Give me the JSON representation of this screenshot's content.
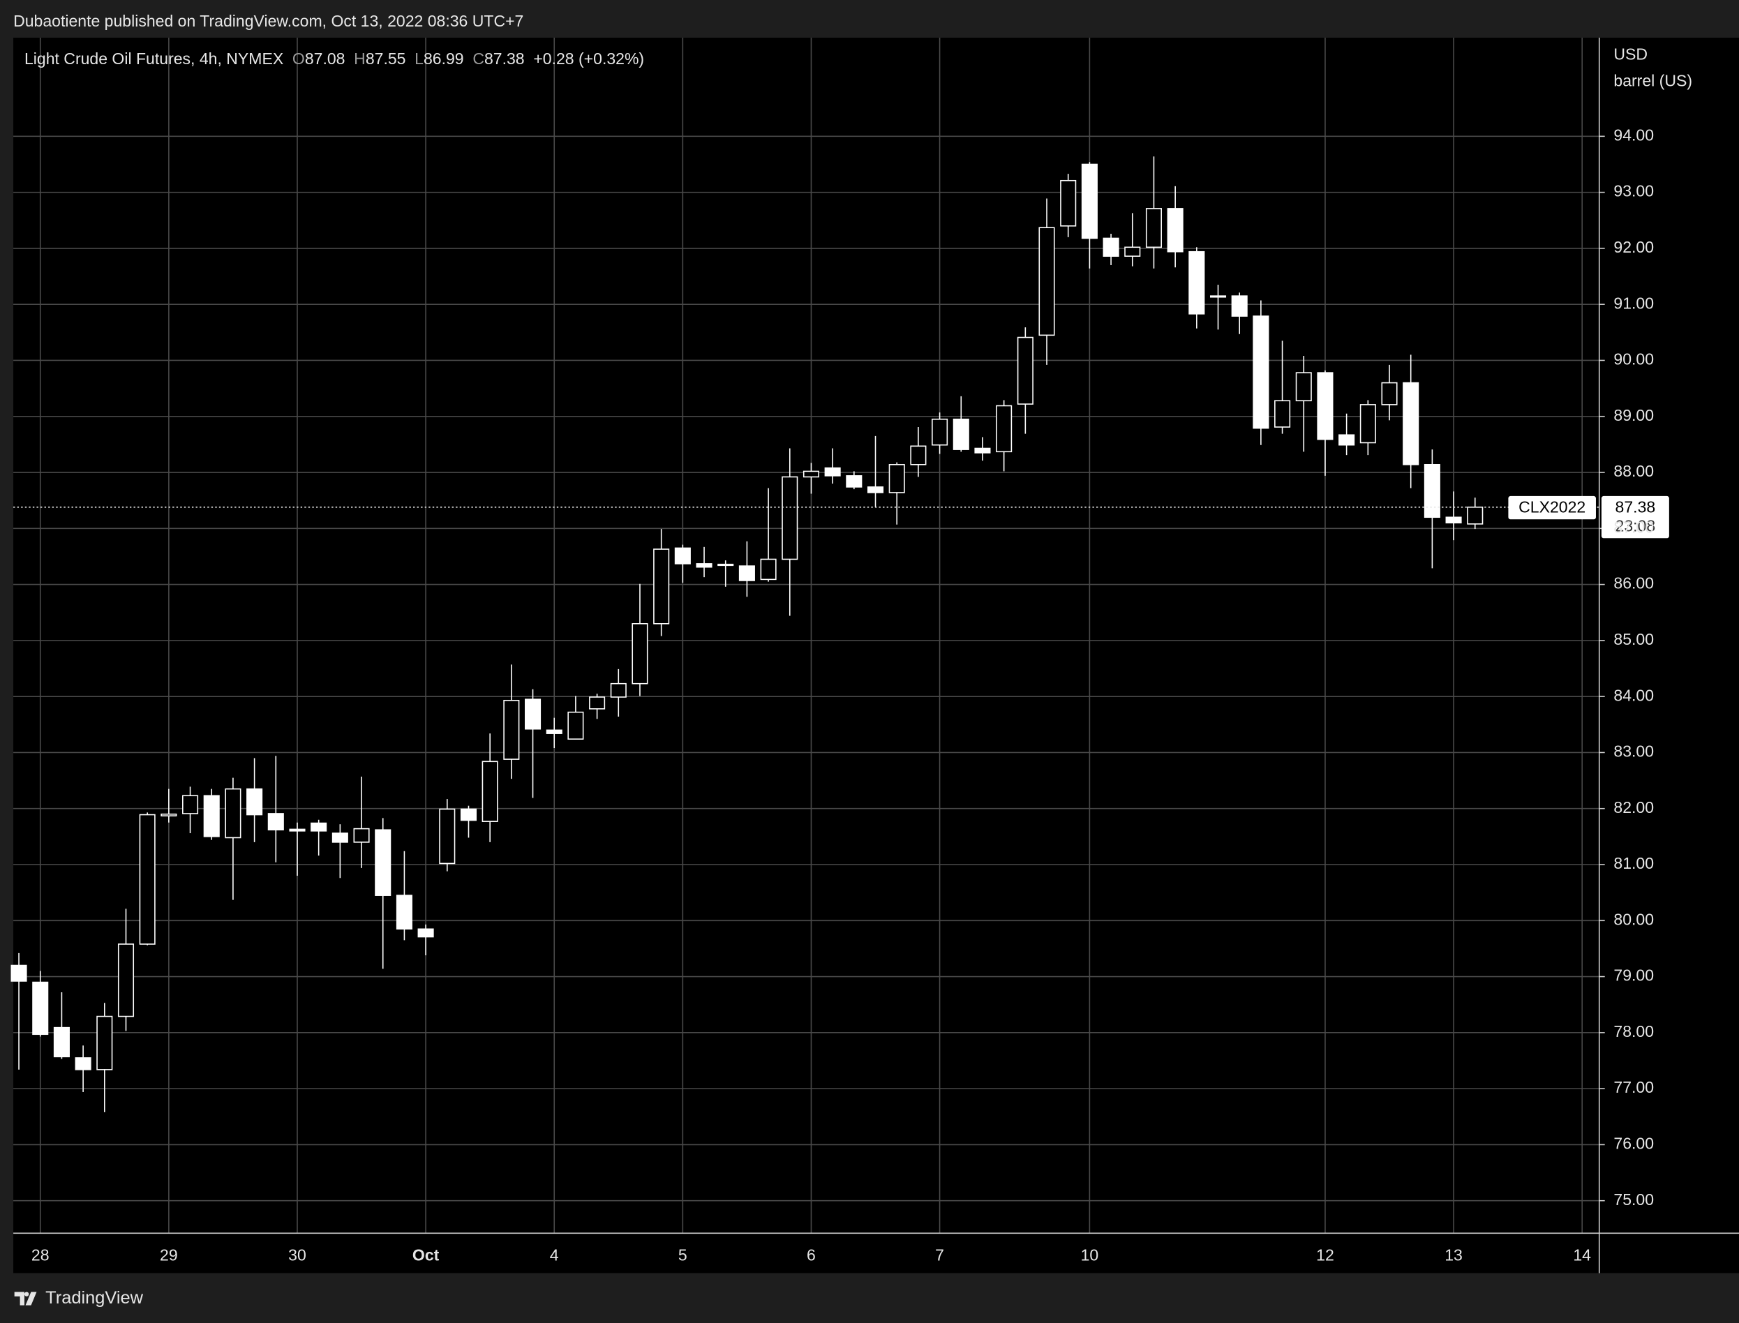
{
  "chart_data": {
    "type": "candlestick",
    "header": "Dubaotiente published on TradingView.com, Oct 13, 2022 08:36 UTC+7",
    "legend": {
      "symbol": "Light Crude Oil Futures, 4h, NYMEX",
      "fields": [
        {
          "label": "O",
          "value": 87.08
        },
        {
          "label": "H",
          "value": 87.55
        },
        {
          "label": "L",
          "value": 86.99
        },
        {
          "label": "C",
          "value": 87.38
        }
      ],
      "change": "+0.28 (+0.32%)"
    },
    "y_unit": [
      "USD",
      "barrel (US)"
    ],
    "footer": "TradingView",
    "ohlc": {
      "open": [
        79.2,
        78.9,
        78.09,
        77.55,
        77.34,
        78.29,
        79.58,
        81.87,
        81.91,
        82.23,
        81.48,
        82.35,
        81.91,
        81.63,
        81.74,
        81.56,
        81.4,
        81.62,
        80.45,
        79.85,
        81.02,
        81.99,
        81.77,
        82.88,
        83.95,
        83.4,
        83.24,
        83.78,
        83.99,
        84.23,
        85.3,
        86.65,
        86.37,
        86.34,
        86.33,
        86.09,
        86.45,
        87.92,
        88.08,
        87.94,
        87.74,
        87.64,
        88.14,
        88.49,
        88.95,
        88.43,
        88.37,
        89.22,
        90.45,
        92.4,
        93.5,
        92.18,
        91.86,
        92.02,
        92.71,
        91.94,
        91.15,
        91.15,
        90.79,
        88.81,
        89.28,
        89.78,
        88.67,
        88.53,
        89.21,
        89.6,
        88.14,
        87.2,
        87.08
      ],
      "high": [
        79.42,
        79.1,
        78.72,
        77.77,
        78.53,
        80.21,
        81.93,
        82.35,
        82.39,
        82.35,
        82.55,
        82.9,
        82.94,
        81.75,
        81.8,
        81.72,
        82.57,
        81.83,
        81.24,
        79.93,
        82.17,
        82.05,
        83.34,
        84.57,
        84.13,
        83.62,
        84.01,
        84.05,
        84.49,
        86.01,
        86.99,
        86.71,
        86.67,
        86.43,
        86.77,
        87.72,
        88.43,
        88.17,
        88.43,
        88.02,
        88.65,
        88.18,
        88.81,
        89.07,
        89.36,
        88.63,
        89.29,
        90.59,
        92.89,
        93.33,
        93.54,
        92.26,
        92.63,
        93.64,
        93.11,
        92.02,
        91.35,
        91.21,
        91.07,
        90.35,
        90.08,
        89.82,
        89.05,
        89.29,
        89.92,
        90.1,
        88.41,
        87.66,
        87.55
      ],
      "low": [
        77.34,
        77.93,
        77.53,
        76.94,
        76.58,
        78.03,
        79.56,
        81.75,
        81.56,
        81.44,
        80.37,
        81.4,
        81.04,
        80.8,
        81.16,
        80.76,
        80.94,
        79.14,
        79.65,
        79.38,
        80.88,
        81.48,
        81.4,
        82.53,
        82.19,
        83.08,
        83.24,
        83.6,
        83.64,
        84.01,
        85.08,
        86.03,
        86.13,
        85.96,
        85.78,
        86.05,
        85.44,
        87.62,
        87.8,
        87.7,
        87.38,
        87.07,
        87.92,
        88.33,
        88.37,
        88.21,
        88.02,
        88.69,
        89.92,
        92.2,
        91.64,
        91.7,
        91.68,
        91.64,
        91.66,
        90.57,
        90.55,
        90.47,
        88.49,
        88.69,
        88.37,
        87.94,
        88.31,
        88.31,
        88.93,
        87.72,
        86.29,
        86.79,
        86.99
      ],
      "close": [
        78.92,
        77.97,
        77.57,
        77.34,
        78.29,
        79.58,
        81.89,
        81.9,
        82.23,
        81.5,
        82.35,
        81.89,
        81.62,
        81.6,
        81.6,
        81.4,
        81.64,
        80.45,
        79.85,
        79.71,
        81.99,
        81.79,
        82.84,
        83.93,
        83.42,
        83.34,
        83.72,
        83.99,
        84.23,
        85.3,
        86.63,
        86.37,
        86.31,
        86.36,
        86.07,
        86.45,
        87.92,
        88.02,
        87.94,
        87.74,
        87.64,
        88.14,
        88.47,
        88.95,
        88.41,
        88.35,
        89.19,
        90.41,
        92.37,
        93.21,
        92.18,
        91.86,
        92.02,
        92.71,
        91.94,
        90.83,
        91.13,
        90.79,
        88.79,
        89.28,
        89.78,
        88.59,
        88.49,
        89.21,
        89.6,
        88.14,
        87.2,
        87.1,
        87.38
      ]
    },
    "xlim": [
      -0.26,
      73.8
    ],
    "xticks": [
      {
        "value": 1,
        "label": "28"
      },
      {
        "value": 7,
        "label": "29"
      },
      {
        "value": 13,
        "label": "30"
      },
      {
        "value": 19,
        "label": "Oct"
      },
      {
        "value": 25,
        "label": "4"
      },
      {
        "value": 31,
        "label": "5"
      },
      {
        "value": 37,
        "label": "6"
      },
      {
        "value": 43,
        "label": "7"
      },
      {
        "value": 50,
        "label": "10"
      },
      {
        "value": 61,
        "label": "12"
      },
      {
        "value": 67,
        "label": "13"
      },
      {
        "value": 73,
        "label": "14"
      }
    ],
    "ylim": [
      74.42,
      95.76
    ],
    "yticks": [
      {
        "value": 75,
        "label": "75.00"
      },
      {
        "value": 76,
        "label": "76.00"
      },
      {
        "value": 77,
        "label": "77.00"
      },
      {
        "value": 78,
        "label": "78.00"
      },
      {
        "value": 79,
        "label": "79.00"
      },
      {
        "value": 80,
        "label": "80.00"
      },
      {
        "value": 81,
        "label": "81.00"
      },
      {
        "value": 82,
        "label": "82.00"
      },
      {
        "value": 83,
        "label": "83.00"
      },
      {
        "value": 84,
        "label": "84.00"
      },
      {
        "value": 85,
        "label": "85.00"
      },
      {
        "value": 86,
        "label": "86.00"
      },
      {
        "value": 87,
        "label": "87.00"
      },
      {
        "value": 88,
        "label": "88.00"
      },
      {
        "value": 89,
        "label": "89.00"
      },
      {
        "value": 90,
        "label": "90.00"
      },
      {
        "value": 91,
        "label": "91.00"
      },
      {
        "value": 92,
        "label": "92.00"
      },
      {
        "value": 93,
        "label": "93.00"
      },
      {
        "value": 94,
        "label": "94.00"
      }
    ],
    "grid": true,
    "up_fill": "#000000",
    "down_fill": "#ffffff",
    "wick_color": "#ffffff",
    "last_price": {
      "symbol": "CLX2022",
      "value": 87.38,
      "countdown": "23:08"
    }
  }
}
